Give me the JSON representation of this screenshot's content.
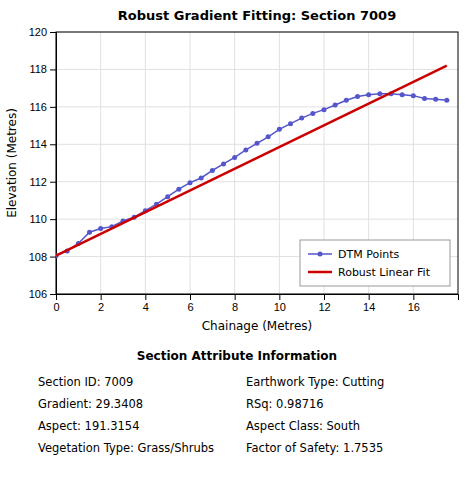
{
  "chart_data": {
    "type": "line",
    "title": "Robust Gradient Fitting: Section 7009",
    "xlabel": "Chainage (Metres)",
    "ylabel": "Elevation (Metres)",
    "xlim": [
      0,
      18
    ],
    "ylim": [
      106,
      120
    ],
    "xticks": [
      0,
      2,
      4,
      6,
      8,
      10,
      12,
      14,
      16
    ],
    "yticks": [
      106,
      108,
      110,
      112,
      114,
      116,
      118,
      120
    ],
    "grid": true,
    "legend": "lower right",
    "series": [
      {
        "name": "DTM Points",
        "color": "#5555cc",
        "marker": "circle",
        "line_style": "solid",
        "x": [
          0.0,
          0.5,
          1.0,
          1.5,
          2.0,
          2.5,
          3.0,
          3.5,
          4.0,
          4.5,
          5.0,
          5.5,
          6.0,
          6.5,
          7.0,
          7.5,
          8.0,
          8.5,
          9.0,
          9.5,
          10.0,
          10.5,
          11.0,
          11.5,
          12.0,
          12.5,
          13.0,
          13.5,
          14.0,
          14.5,
          15.0,
          15.5,
          16.0,
          16.5,
          17.0,
          17.5
        ],
        "values": [
          108.05,
          108.3,
          108.7,
          109.3,
          109.5,
          109.6,
          109.9,
          110.1,
          110.45,
          110.8,
          111.2,
          111.6,
          111.95,
          112.2,
          112.6,
          112.95,
          113.3,
          113.7,
          114.05,
          114.4,
          114.8,
          115.1,
          115.4,
          115.65,
          115.85,
          116.1,
          116.35,
          116.55,
          116.65,
          116.7,
          116.7,
          116.65,
          116.6,
          116.45,
          116.4,
          116.35
        ]
      },
      {
        "name": "Robust Linear Fit",
        "color": "#cc0000",
        "line_style": "solid",
        "x": [
          0.0,
          17.5
        ],
        "values": [
          108.05,
          118.2
        ]
      }
    ],
    "annotations": {
      "title": "Section Attribute Information",
      "left": [
        "Section ID: 7009",
        "Gradient: 29.3408",
        "Aspect: 191.3154",
        "Vegetation Type: Grass/Shrubs"
      ],
      "right": [
        "Earthwork Type: Cutting",
        "RSq: 0.98716",
        "Aspect Class: South",
        "Factor of Safety: 1.7535"
      ]
    }
  }
}
